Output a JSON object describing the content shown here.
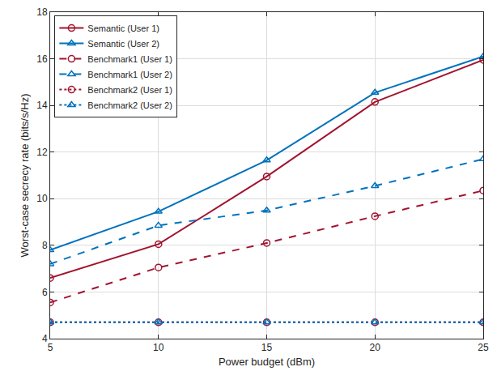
{
  "chart_data": {
    "type": "line",
    "x_label": "Power budget (dBm)",
    "y_label": "Worst-case secrecy rate (bits/s/Hz)",
    "x": [
      5,
      10,
      15,
      20,
      25
    ],
    "xlim": [
      5,
      25
    ],
    "xticks": [
      5,
      10,
      15,
      20,
      25
    ],
    "ylim": [
      4,
      18
    ],
    "yticks": [
      4,
      6,
      8,
      10,
      12,
      14,
      16,
      18
    ],
    "grid": true,
    "legend": "top-left",
    "series": [
      {
        "name": "Semantic (User 1)",
        "color": "#a2142f",
        "marker": "circle",
        "line_style": "solid",
        "values": [
          6.6,
          8.05,
          10.95,
          14.15,
          15.95
        ]
      },
      {
        "name": "Semantic (User 2)",
        "color": "#0072bd",
        "marker": "triangle",
        "line_style": "solid",
        "values": [
          7.8,
          9.45,
          11.65,
          14.55,
          16.1
        ]
      },
      {
        "name": "Benchmark1 (User 1)",
        "color": "#a2142f",
        "marker": "circle",
        "line_style": "dash",
        "values": [
          5.55,
          7.05,
          8.1,
          9.25,
          10.35
        ]
      },
      {
        "name": "Benchmark1 (User 2)",
        "color": "#0072bd",
        "marker": "triangle",
        "line_style": "dash",
        "values": [
          7.2,
          8.85,
          9.5,
          10.55,
          11.7
        ]
      },
      {
        "name": "Benchmark2 (User 1)",
        "color": "#a2142f",
        "marker": "circle",
        "line_style": "dot",
        "values": [
          4.7,
          4.7,
          4.7,
          4.7,
          4.7
        ]
      },
      {
        "name": "Benchmark2 (User 2)",
        "color": "#0072bd",
        "marker": "triangle",
        "line_style": "dot",
        "values": [
          4.7,
          4.7,
          4.7,
          4.7,
          4.7
        ]
      }
    ]
  }
}
